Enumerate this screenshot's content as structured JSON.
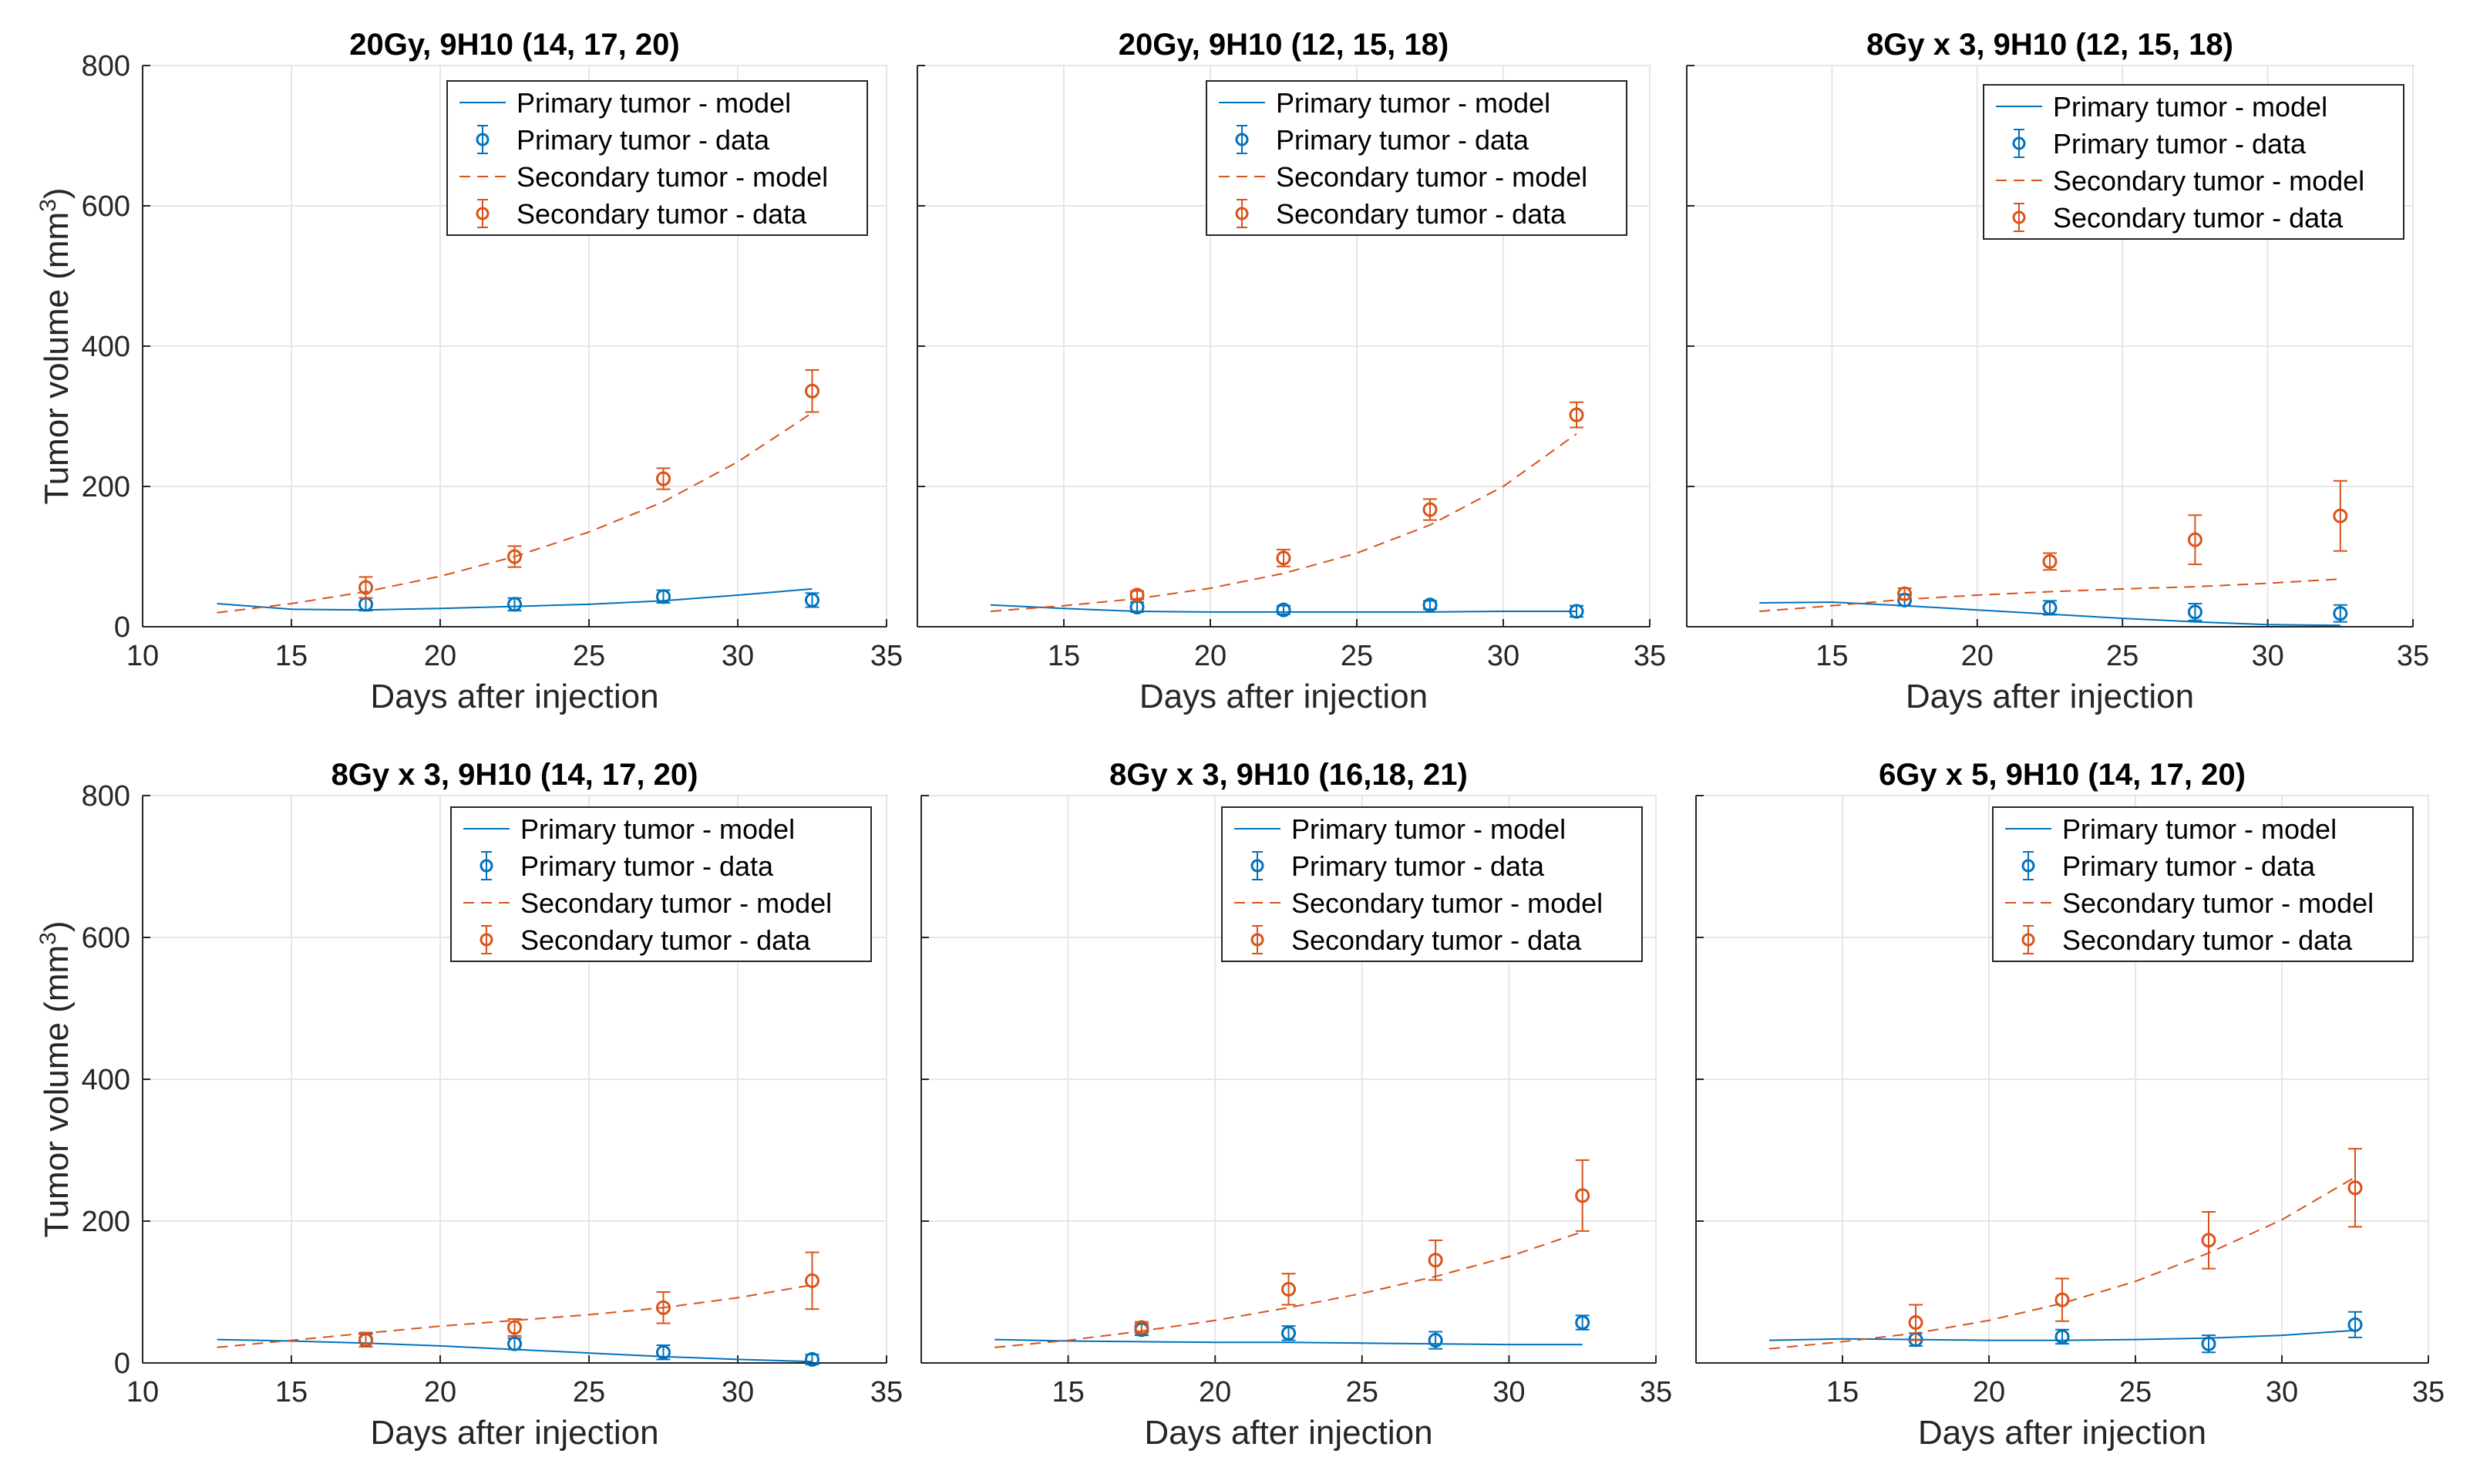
{
  "figure": {
    "ylabel_main": "Tumor volume (mm",
    "ylabel_sup": "3",
    "ylabel_close": ")"
  },
  "chart_data": [
    {
      "type": "scatter",
      "title": "20Gy, 9H10 (14, 17, 20)",
      "xlabel": "Days after injection",
      "ylabel": "Tumor volume (mm3)",
      "xlim": [
        10,
        35
      ],
      "ylim": [
        0,
        800
      ],
      "xticks": [
        "10",
        "15",
        "20",
        "25",
        "30",
        "35"
      ],
      "yticks": [
        "0",
        "200",
        "400",
        "600",
        "800"
      ],
      "show_yticklabels": true,
      "legend": [
        "Primary tumor - model",
        "Primary tumor - data",
        "Secondary tumor - model",
        "Secondary tumor - data"
      ],
      "series": [
        {
          "name": "Primary tumor - model",
          "kind": "model",
          "color": "#0072BD",
          "x": [
            12.5,
            15,
            17.5,
            20,
            22.5,
            25,
            27.5,
            30,
            32.5
          ],
          "y": [
            33,
            25,
            24,
            26,
            29,
            32,
            37,
            45,
            54
          ]
        },
        {
          "name": "Primary tumor - data",
          "kind": "data",
          "color": "#0072BD",
          "x": [
            17.5,
            22.5,
            27.5,
            32.5
          ],
          "y": [
            32,
            32,
            43,
            38
          ],
          "err": [
            9,
            9,
            9,
            10
          ]
        },
        {
          "name": "Secondary tumor - model",
          "kind": "model",
          "color": "#D95319",
          "x": [
            12.5,
            15,
            17.5,
            20,
            22.5,
            25,
            27.5,
            30,
            32.5
          ],
          "y": [
            20,
            33,
            50,
            72,
            100,
            135,
            178,
            235,
            305
          ]
        },
        {
          "name": "Secondary tumor - data",
          "kind": "data",
          "color": "#D95319",
          "x": [
            17.5,
            22.5,
            27.5,
            32.5
          ],
          "y": [
            56,
            100,
            211,
            336
          ],
          "err": [
            15,
            15,
            15,
            30
          ]
        }
      ]
    },
    {
      "type": "scatter",
      "title": "20Gy, 9H10 (12, 15, 18)",
      "xlabel": "Days after injection",
      "ylabel": "",
      "xlim": [
        10,
        35
      ],
      "ylim": [
        0,
        800
      ],
      "xticks": [
        "15",
        "20",
        "25",
        "30",
        "35"
      ],
      "yticks": [
        "0",
        "200",
        "400",
        "600",
        "800"
      ],
      "show_yticklabels": false,
      "legend": [
        "Primary tumor - model",
        "Primary tumor - data",
        "Secondary tumor - model",
        "Secondary tumor - data"
      ],
      "series": [
        {
          "name": "Primary tumor - model",
          "kind": "model",
          "color": "#0072BD",
          "x": [
            12.5,
            15,
            17.5,
            20,
            22.5,
            25,
            27.5,
            30,
            32.5
          ],
          "y": [
            31,
            26,
            22,
            21,
            21,
            21,
            21,
            22,
            22
          ]
        },
        {
          "name": "Primary tumor - data",
          "kind": "data",
          "color": "#0072BD",
          "x": [
            17.5,
            22.5,
            27.5,
            32.5
          ],
          "y": [
            28,
            24,
            31,
            22
          ],
          "err": [
            7,
            6,
            6,
            8
          ]
        },
        {
          "name": "Secondary tumor - model",
          "kind": "model",
          "color": "#D95319",
          "x": [
            12.5,
            15,
            17.5,
            20,
            22.5,
            25,
            27.5,
            30,
            32.5
          ],
          "y": [
            22,
            30,
            40,
            55,
            76,
            105,
            145,
            200,
            275
          ]
        },
        {
          "name": "Secondary tumor - data",
          "kind": "data",
          "color": "#D95319",
          "x": [
            17.5,
            22.5,
            27.5,
            32.5
          ],
          "y": [
            45,
            98,
            167,
            302
          ],
          "err": [
            6,
            12,
            15,
            18
          ]
        }
      ]
    },
    {
      "type": "scatter",
      "title": "8Gy x 3, 9H10 (12, 15, 18)",
      "xlabel": "Days after injection",
      "ylabel": "",
      "xlim": [
        10,
        35
      ],
      "ylim": [
        0,
        800
      ],
      "xticks": [
        "15",
        "20",
        "25",
        "30",
        "35"
      ],
      "yticks": [
        "0",
        "200",
        "400",
        "600",
        "800"
      ],
      "show_yticklabels": false,
      "legend": [
        "Primary tumor - model",
        "Primary tumor - data",
        "Secondary tumor - model",
        "Secondary tumor - data"
      ],
      "series": [
        {
          "name": "Primary tumor - model",
          "kind": "model",
          "color": "#0072BD",
          "x": [
            12.5,
            15,
            17.5,
            20,
            22.5,
            25,
            27.5,
            30,
            32.5
          ],
          "y": [
            34,
            35,
            30,
            24,
            18,
            12,
            7,
            3,
            2
          ]
        },
        {
          "name": "Primary tumor - data",
          "kind": "data",
          "color": "#0072BD",
          "x": [
            17.5,
            22.5,
            27.5,
            32.5
          ],
          "y": [
            38,
            27,
            21,
            19
          ],
          "err": [
            8,
            10,
            12,
            12
          ]
        },
        {
          "name": "Secondary tumor - model",
          "kind": "model",
          "color": "#D95319",
          "x": [
            12.5,
            15,
            17.5,
            20,
            22.5,
            25,
            27.5,
            30,
            32.5
          ],
          "y": [
            22,
            30,
            39,
            45,
            50,
            54,
            57,
            62,
            68
          ]
        },
        {
          "name": "Secondary tumor - data",
          "kind": "data",
          "color": "#D95319",
          "x": [
            17.5,
            22.5,
            27.5,
            32.5
          ],
          "y": [
            47,
            93,
            124,
            158
          ],
          "err": [
            8,
            12,
            35,
            50
          ]
        }
      ]
    },
    {
      "type": "scatter",
      "title": "8Gy x 3, 9H10 (14, 17, 20)",
      "xlabel": "Days after injection",
      "ylabel": "Tumor volume (mm3)",
      "xlim": [
        10,
        35
      ],
      "ylim": [
        0,
        800
      ],
      "xticks": [
        "10",
        "15",
        "20",
        "25",
        "30",
        "35"
      ],
      "yticks": [
        "0",
        "200",
        "400",
        "600",
        "800"
      ],
      "show_yticklabels": true,
      "legend": [
        "Primary tumor - model",
        "Primary tumor - data",
        "Secondary tumor - model",
        "Secondary tumor - data"
      ],
      "series": [
        {
          "name": "Primary tumor - model",
          "kind": "model",
          "color": "#0072BD",
          "x": [
            12.5,
            15,
            17.5,
            20,
            22.5,
            25,
            27.5,
            30,
            32.5
          ],
          "y": [
            33,
            31,
            28,
            24,
            19,
            14,
            9,
            5,
            2
          ]
        },
        {
          "name": "Primary tumor - data",
          "kind": "data",
          "color": "#0072BD",
          "x": [
            17.5,
            22.5,
            27.5,
            32.5
          ],
          "y": [
            32,
            27,
            15,
            5
          ],
          "err": [
            9,
            8,
            10,
            7
          ]
        },
        {
          "name": "Secondary tumor - model",
          "kind": "model",
          "color": "#D95319",
          "x": [
            12.5,
            15,
            17.5,
            20,
            22.5,
            25,
            27.5,
            30,
            32.5
          ],
          "y": [
            22,
            32,
            42,
            52,
            60,
            68,
            78,
            92,
            110
          ]
        },
        {
          "name": "Secondary tumor - data",
          "kind": "data",
          "color": "#D95319",
          "x": [
            17.5,
            22.5,
            27.5,
            32.5
          ],
          "y": [
            33,
            50,
            78,
            116
          ],
          "err": [
            10,
            12,
            22,
            40
          ]
        }
      ]
    },
    {
      "type": "scatter",
      "title": "8Gy x 3, 9H10 (16,18, 21)",
      "xlabel": "Days after injection",
      "ylabel": "",
      "xlim": [
        10,
        35
      ],
      "ylim": [
        0,
        800
      ],
      "xticks": [
        "15",
        "20",
        "25",
        "30",
        "35"
      ],
      "yticks": [
        "0",
        "200",
        "400",
        "600",
        "800"
      ],
      "show_yticklabels": false,
      "legend": [
        "Primary tumor - model",
        "Primary tumor - data",
        "Secondary tumor - model",
        "Secondary tumor - data"
      ],
      "series": [
        {
          "name": "Primary tumor - model",
          "kind": "model",
          "color": "#0072BD",
          "x": [
            12.5,
            15,
            17.5,
            20,
            22.5,
            25,
            27.5,
            30,
            32.5
          ],
          "y": [
            33,
            31,
            30,
            29,
            29,
            28,
            27,
            26,
            26
          ]
        },
        {
          "name": "Primary tumor - data",
          "kind": "data",
          "color": "#0072BD",
          "x": [
            17.5,
            22.5,
            27.5,
            32.5
          ],
          "y": [
            47,
            42,
            32,
            57
          ],
          "err": [
            8,
            10,
            12,
            10
          ]
        },
        {
          "name": "Secondary tumor - model",
          "kind": "model",
          "color": "#D95319",
          "x": [
            12.5,
            15,
            17.5,
            20,
            22.5,
            25,
            27.5,
            30,
            32.5
          ],
          "y": [
            22,
            32,
            45,
            60,
            78,
            98,
            122,
            150,
            185
          ]
        },
        {
          "name": "Secondary tumor - data",
          "kind": "data",
          "color": "#D95319",
          "x": [
            17.5,
            22.5,
            27.5,
            32.5
          ],
          "y": [
            50,
            104,
            145,
            236
          ],
          "err": [
            8,
            22,
            28,
            50
          ]
        }
      ]
    },
    {
      "type": "scatter",
      "title": "6Gy x 5, 9H10 (14, 17, 20)",
      "xlabel": "Days after injection",
      "ylabel": "",
      "xlim": [
        10,
        35
      ],
      "ylim": [
        0,
        800
      ],
      "xticks": [
        "15",
        "20",
        "25",
        "30",
        "35"
      ],
      "yticks": [
        "0",
        "200",
        "400",
        "600",
        "800"
      ],
      "show_yticklabels": false,
      "legend": [
        "Primary tumor - model",
        "Primary tumor - data",
        "Secondary tumor - model",
        "Secondary tumor - data"
      ],
      "series": [
        {
          "name": "Primary tumor - model",
          "kind": "model",
          "color": "#0072BD",
          "x": [
            12.5,
            15,
            17.5,
            20,
            22.5,
            25,
            27.5,
            30,
            32.5
          ],
          "y": [
            32,
            34,
            33,
            32,
            32,
            33,
            35,
            39,
            46
          ]
        },
        {
          "name": "Primary tumor - data",
          "kind": "data",
          "color": "#0072BD",
          "x": [
            17.5,
            22.5,
            27.5,
            32.5
          ],
          "y": [
            33,
            37,
            27,
            54
          ],
          "err": [
            9,
            10,
            12,
            18
          ]
        },
        {
          "name": "Secondary tumor - model",
          "kind": "model",
          "color": "#D95319",
          "x": [
            12.5,
            15,
            17.5,
            20,
            22.5,
            25,
            27.5,
            30,
            32.5
          ],
          "y": [
            20,
            30,
            42,
            60,
            84,
            115,
            155,
            202,
            262
          ]
        },
        {
          "name": "Secondary tumor - data",
          "kind": "data",
          "color": "#D95319",
          "x": [
            17.5,
            22.5,
            27.5,
            32.5
          ],
          "y": [
            57,
            89,
            173,
            247
          ],
          "err": [
            25,
            30,
            40,
            55
          ]
        }
      ]
    }
  ]
}
